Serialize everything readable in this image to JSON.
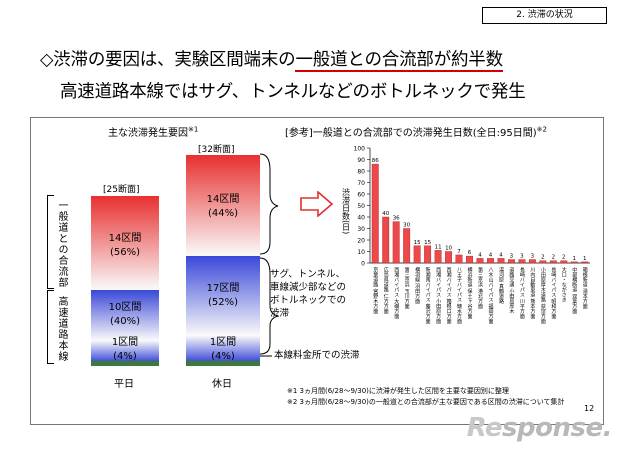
{
  "section_label": "2. 渋滞の状況",
  "title": {
    "line1_prefix": "◇渋滞の要因は、実験区間端末の",
    "line1_highlight": "一般道との合流部が約半数",
    "line2": "高速道路本線ではサグ、トンネルなどのボトルネックで発生"
  },
  "left_chart": {
    "title": "主な渋滞発生要因",
    "title_note": "※1",
    "group_label_top": "一般道との合流部",
    "group_label_bottom": "高速道路本線",
    "bars": [
      {
        "name": "平日",
        "total_label": "[25断面]",
        "segments": [
          {
            "id": "merge",
            "line1": "14区間",
            "line2": "(56%)",
            "count": 14,
            "color": "#e84040"
          },
          {
            "id": "bottleneck",
            "line1": "10区間",
            "line2": "(40%)",
            "count": 10,
            "color": "#4a55d8"
          },
          {
            "id": "toll",
            "line1": "1区間",
            "line2": "(4%)",
            "count": 1,
            "color": "#4a55d8"
          }
        ]
      },
      {
        "name": "休日",
        "total_label": "[32断面]",
        "segments": [
          {
            "id": "merge",
            "line1": "14区間",
            "line2": "(44%)",
            "count": 14,
            "color": "#e84040"
          },
          {
            "id": "bottleneck",
            "line1": "17区間",
            "line2": "(52%)",
            "count": 17,
            "color": "#4a55d8"
          },
          {
            "id": "toll",
            "line1": "1区間",
            "line2": "(4%)",
            "count": 1,
            "color": "#4a55d8"
          }
        ]
      }
    ],
    "annotation_bottleneck": [
      "サグ、トンネル、",
      "車線減少部などの",
      "ボトルネックでの",
      "渋滞"
    ],
    "annotation_toll": "本線料金所での渋滞"
  },
  "chart_data": {
    "type": "bar",
    "title": "[参考]一般道との合流部での渋滞発生日数(全日:95日間)",
    "title_note": "※2",
    "ylabel": "渋滞日数(日)",
    "ylim": [
      0,
      100
    ],
    "yticks": [
      0,
      10,
      20,
      30,
      40,
      50,
      60,
      70,
      80,
      90,
      100
    ],
    "categories": [
      "京葉道路 宮野木方面",
      "広島呉道路 仁方方面",
      "西湘バイパス 大磯方面",
      "第三京浜 玉川方面",
      "横羽線 羽田方面",
      "新湘南バイパス 藤沢方面",
      "西湘バイパス 小田原方面",
      "西湘バイパス 箱根口方面",
      "八王子バイパス 鑓水方面",
      "横浜新道 保土ヶ谷方面",
      "第三京浜 港北方面",
      "八木山バイパス 福岡方面",
      "湯河原 真鶴道路",
      "道路交通 小田原厚木",
      "長崎バイパス 川平方面",
      "川内自動車道 熊本方面",
      "小田原厚木道路 荻窪方面",
      "長崎バイパス 昭和方面",
      "大口・ながさき",
      "中部横断道 双葉方面",
      "箱根新道 湯本方面"
    ],
    "values": [
      86,
      40,
      36,
      30,
      15,
      15,
      11,
      10,
      7,
      6,
      4,
      4,
      4,
      3,
      3,
      3,
      2,
      2,
      2,
      1,
      1
    ],
    "bar_color": "#ec4a4a"
  },
  "footnotes": [
    "※1 3ヵ月間(6/28〜9/30)に渋滞が発生した区間を主要な要因別に整理",
    "※2 3ヵ月間(6/28〜9/30)の一般道との合流部が主な要因である区間の渋滞について集計"
  ],
  "page_number": "12",
  "logo": {
    "main": "Re",
    "rest": "sponse."
  }
}
